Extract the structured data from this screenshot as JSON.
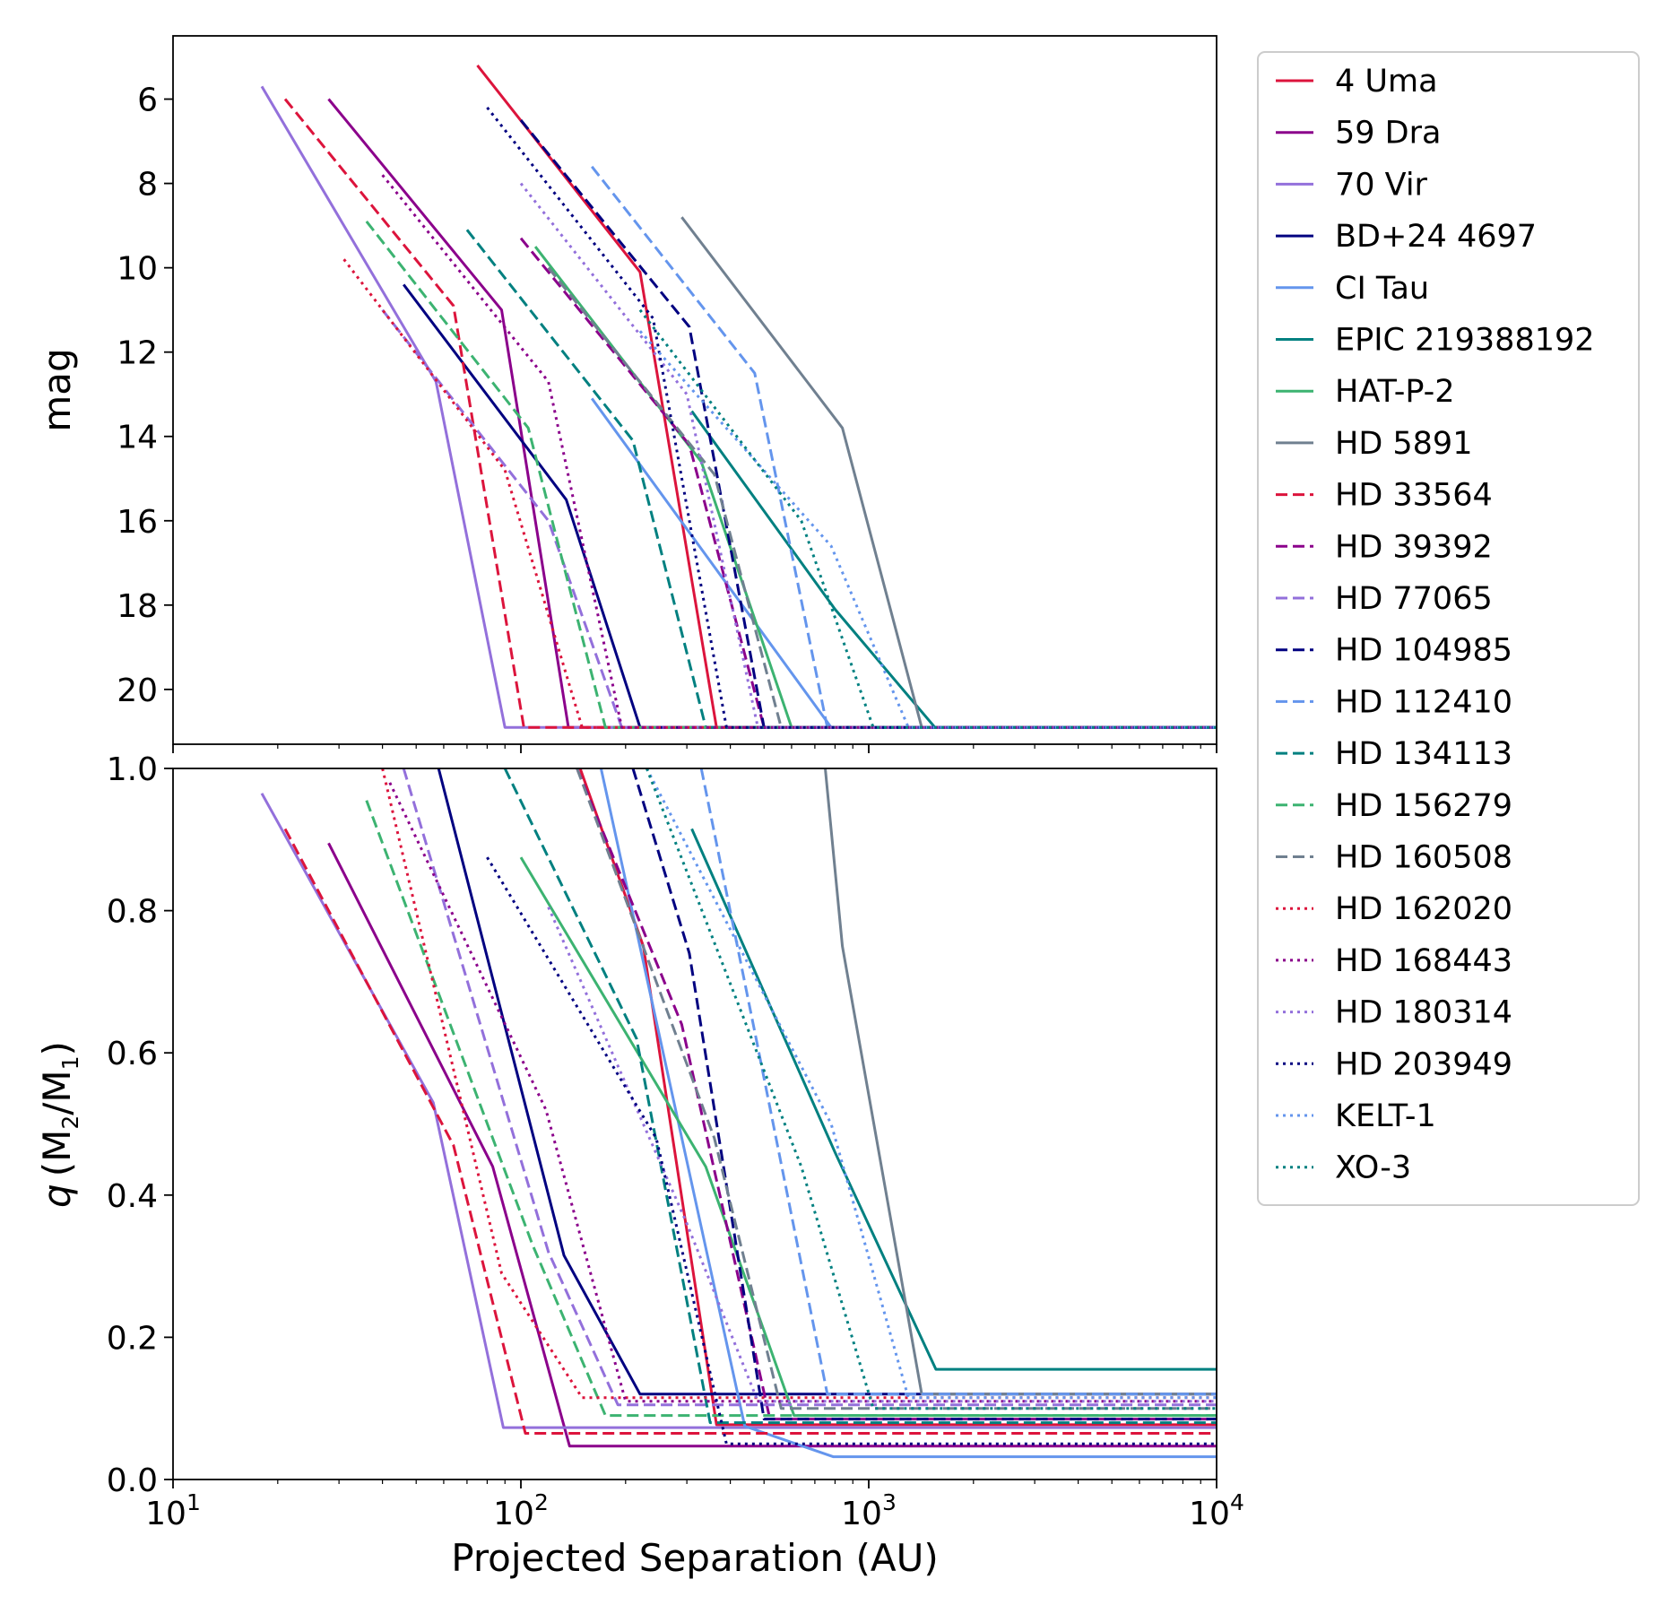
{
  "chart_data": [
    {
      "type": "line",
      "panel": "top",
      "ylabel": "mag",
      "xlabel": "",
      "xscale": "log",
      "xlim": [
        10,
        10000
      ],
      "ylim": [
        4.5,
        21.3
      ],
      "yinverted": true,
      "yticks": [
        "6",
        "8",
        "10",
        "12",
        "14",
        "16",
        "18",
        "20"
      ],
      "series": [
        {
          "name": "4 Uma",
          "color": "#dc143c",
          "style": "solid",
          "x": [
            75,
            220,
            365,
            10000
          ],
          "y": [
            5.2,
            10.1,
            20.9,
            20.9
          ]
        },
        {
          "name": "59 Dra",
          "color": "#8b008b",
          "style": "solid",
          "x": [
            28,
            88,
            137,
            10000
          ],
          "y": [
            6.0,
            11.0,
            20.9,
            20.9
          ]
        },
        {
          "name": "70 Vir",
          "color": "#9370db",
          "style": "solid",
          "x": [
            18,
            57,
            90,
            10000
          ],
          "y": [
            5.7,
            12.7,
            20.9,
            20.9
          ]
        },
        {
          "name": "BD+24 4697",
          "color": "#000080",
          "style": "solid",
          "x": [
            46,
            135,
            220,
            10000
          ],
          "y": [
            10.4,
            15.5,
            20.9,
            20.9
          ]
        },
        {
          "name": "CI Tau",
          "color": "#6495ed",
          "style": "solid",
          "x": [
            160,
            780,
            10000
          ],
          "y": [
            13.1,
            20.9,
            20.9
          ]
        },
        {
          "name": "EPIC 219388192",
          "color": "#008080",
          "style": "solid",
          "x": [
            310,
            800,
            1550,
            10000
          ],
          "y": [
            13.4,
            18.1,
            20.9,
            20.9
          ]
        },
        {
          "name": "HAT-P-2",
          "color": "#3cb371",
          "style": "solid",
          "x": [
            110,
            330,
            600,
            10000
          ],
          "y": [
            9.5,
            14.6,
            20.9,
            20.9
          ]
        },
        {
          "name": "HD 5891",
          "color": "#708090",
          "style": "solid",
          "x": [
            290,
            840,
            1420,
            10000
          ],
          "y": [
            8.8,
            13.8,
            20.9,
            20.9
          ]
        },
        {
          "name": "HD 33564",
          "color": "#dc143c",
          "style": "dashed",
          "x": [
            21,
            64,
            102,
            10000
          ],
          "y": [
            6.0,
            10.9,
            20.9,
            20.9
          ]
        },
        {
          "name": "HD 39392",
          "color": "#8b008b",
          "style": "dashed",
          "x": [
            100,
            305,
            500,
            10000
          ],
          "y": [
            9.3,
            14.2,
            20.9,
            20.9
          ]
        },
        {
          "name": "HD 77065",
          "color": "#9370db",
          "style": "dashed",
          "x": [
            40,
            120,
            195,
            10000
          ],
          "y": [
            11.0,
            16.0,
            20.9,
            20.9
          ]
        },
        {
          "name": "HD 104985",
          "color": "#000080",
          "style": "dashed",
          "x": [
            100,
            305,
            500,
            10000
          ],
          "y": [
            6.5,
            11.4,
            20.9,
            20.9
          ]
        },
        {
          "name": "HD 112410",
          "color": "#6495ed",
          "style": "dashed",
          "x": [
            160,
            470,
            760,
            10000
          ],
          "y": [
            7.6,
            12.5,
            20.9,
            20.9
          ]
        },
        {
          "name": "HD 134113",
          "color": "#008080",
          "style": "dashed",
          "x": [
            70,
            210,
            340,
            10000
          ],
          "y": [
            9.1,
            14.1,
            20.9,
            20.9
          ]
        },
        {
          "name": "HD 156279",
          "color": "#3cb371",
          "style": "dashed",
          "x": [
            36,
            105,
            175,
            10000
          ],
          "y": [
            8.9,
            13.8,
            20.9,
            20.9
          ]
        },
        {
          "name": "HD 160508",
          "color": "#708090",
          "style": "dashed",
          "x": [
            120,
            360,
            560,
            10000
          ],
          "y": [
            10.0,
            14.9,
            20.9,
            20.9
          ]
        },
        {
          "name": "HD 162020",
          "color": "#dc143c",
          "style": "dotted",
          "x": [
            31,
            90,
            150,
            10000
          ],
          "y": [
            9.8,
            14.8,
            20.9,
            20.9
          ]
        },
        {
          "name": "HD 168443",
          "color": "#8b008b",
          "style": "dotted",
          "x": [
            40,
            120,
            195,
            10000
          ],
          "y": [
            7.8,
            12.7,
            20.9,
            20.9
          ]
        },
        {
          "name": "HD 180314",
          "color": "#9370db",
          "style": "dotted",
          "x": [
            100,
            300,
            480,
            10000
          ],
          "y": [
            8.0,
            13.0,
            20.9,
            20.9
          ]
        },
        {
          "name": "HD 203949",
          "color": "#000080",
          "style": "dotted",
          "x": [
            80,
            240,
            390,
            10000
          ],
          "y": [
            6.2,
            11.2,
            20.9,
            20.9
          ]
        },
        {
          "name": "KELT-1",
          "color": "#6495ed",
          "style": "dotted",
          "x": [
            220,
            780,
            1300,
            10000
          ],
          "y": [
            11.5,
            16.6,
            20.9,
            20.9
          ]
        },
        {
          "name": "XO-3",
          "color": "#008080",
          "style": "dotted",
          "x": [
            220,
            640,
            1030,
            10000
          ],
          "y": [
            11.0,
            16.0,
            20.9,
            20.9
          ]
        }
      ]
    },
    {
      "type": "line",
      "panel": "bottom",
      "ylabel_main": "q",
      "ylabel_paren_open": "(M",
      "ylabel_sub1": "2",
      "ylabel_slash": "/M",
      "ylabel_sub2": "1",
      "ylabel_paren_close": ")",
      "xlabel": "Projected Separation (AU)",
      "xscale": "log",
      "xlim": [
        10,
        10000
      ],
      "ylim": [
        0.0,
        1.0
      ],
      "yticks": [
        "0.0",
        "0.2",
        "0.4",
        "0.6",
        "0.8",
        "1.0"
      ],
      "xticks": [
        {
          "base": "10",
          "exp": "1"
        },
        {
          "base": "10",
          "exp": "2"
        },
        {
          "base": "10",
          "exp": "3"
        },
        {
          "base": "10",
          "exp": "4"
        }
      ],
      "series": [
        {
          "name": "4 Uma",
          "color": "#dc143c",
          "style": "solid",
          "x": [
            148,
            225,
            365,
            10000
          ],
          "y": [
            1.0,
            0.75,
            0.077,
            0.077
          ]
        },
        {
          "name": "59 Dra",
          "color": "#8b008b",
          "style": "solid",
          "x": [
            28,
            83,
            138,
            10000
          ],
          "y": [
            0.895,
            0.44,
            0.047,
            0.047
          ]
        },
        {
          "name": "70 Vir",
          "color": "#9370db",
          "style": "solid",
          "x": [
            18,
            56,
            89,
            10000
          ],
          "y": [
            0.965,
            0.53,
            0.073,
            0.073
          ]
        },
        {
          "name": "BD+24 4697",
          "color": "#000080",
          "style": "solid",
          "x": [
            58,
            133,
            220,
            10000
          ],
          "y": [
            1.0,
            0.315,
            0.12,
            0.12
          ]
        },
        {
          "name": "CI Tau",
          "color": "#6495ed",
          "style": "solid",
          "x": [
            170,
            440,
            790,
            10000
          ],
          "y": [
            1.0,
            0.075,
            0.032,
            0.032
          ]
        },
        {
          "name": "EPIC 219388192",
          "color": "#008080",
          "style": "solid",
          "x": [
            310,
            800,
            1560,
            10000
          ],
          "y": [
            0.915,
            0.46,
            0.155,
            0.155
          ]
        },
        {
          "name": "HAT-P-2",
          "color": "#3cb371",
          "style": "solid",
          "x": [
            100,
            340,
            610,
            10000
          ],
          "y": [
            0.875,
            0.44,
            0.09,
            0.09
          ]
        },
        {
          "name": "HD 5891",
          "color": "#708090",
          "style": "solid",
          "x": [
            750,
            840,
            1420,
            10000
          ],
          "y": [
            1.0,
            0.75,
            0.12,
            0.12
          ]
        },
        {
          "name": "HD 33564",
          "color": "#dc143c",
          "style": "dashed",
          "x": [
            21,
            64,
            103,
            10000
          ],
          "y": [
            0.915,
            0.47,
            0.065,
            0.065
          ]
        },
        {
          "name": "HD 39392",
          "color": "#8b008b",
          "style": "dashed",
          "x": [
            145,
            290,
            520,
            10000
          ],
          "y": [
            1.0,
            0.64,
            0.085,
            0.085
          ]
        },
        {
          "name": "HD 77065",
          "color": "#9370db",
          "style": "dashed",
          "x": [
            46,
            120,
            190,
            10000
          ],
          "y": [
            1.0,
            0.32,
            0.105,
            0.105
          ]
        },
        {
          "name": "HD 104985",
          "color": "#000080",
          "style": "dashed",
          "x": [
            210,
            305,
            500,
            10000
          ],
          "y": [
            1.0,
            0.74,
            0.085,
            0.085
          ]
        },
        {
          "name": "HD 112410",
          "color": "#6495ed",
          "style": "dashed",
          "x": [
            330,
            470,
            760,
            10000
          ],
          "y": [
            1.0,
            0.63,
            0.12,
            0.12
          ]
        },
        {
          "name": "HD 134113",
          "color": "#008080",
          "style": "dashed",
          "x": [
            90,
            215,
            350,
            10000
          ],
          "y": [
            1.0,
            0.62,
            0.08,
            0.08
          ]
        },
        {
          "name": "HD 156279",
          "color": "#3cb371",
          "style": "dashed",
          "x": [
            36,
            108,
            175,
            10000
          ],
          "y": [
            0.955,
            0.33,
            0.09,
            0.09
          ]
        },
        {
          "name": "HD 160508",
          "color": "#708090",
          "style": "dashed",
          "x": [
            145,
            360,
            560,
            10000
          ],
          "y": [
            1.0,
            0.48,
            0.1,
            0.1
          ]
        },
        {
          "name": "HD 162020",
          "color": "#dc143c",
          "style": "dotted",
          "x": [
            40,
            88,
            150,
            10000
          ],
          "y": [
            1.0,
            0.29,
            0.115,
            0.115
          ]
        },
        {
          "name": "HD 168443",
          "color": "#8b008b",
          "style": "dotted",
          "x": [
            42,
            118,
            200,
            10000
          ],
          "y": [
            0.98,
            0.52,
            0.11,
            0.11
          ]
        },
        {
          "name": "HD 180314",
          "color": "#9370db",
          "style": "dotted",
          "x": [
            120,
            300,
            480,
            10000
          ],
          "y": [
            0.805,
            0.36,
            0.11,
            0.11
          ]
        },
        {
          "name": "HD 203949",
          "color": "#000080",
          "style": "dotted",
          "x": [
            80,
            245,
            390,
            10000
          ],
          "y": [
            0.875,
            0.48,
            0.05,
            0.05
          ]
        },
        {
          "name": "KELT-1",
          "color": "#6495ed",
          "style": "dotted",
          "x": [
            230,
            780,
            1300,
            10000
          ],
          "y": [
            1.0,
            0.5,
            0.115,
            0.115
          ]
        },
        {
          "name": "XO-3",
          "color": "#008080",
          "style": "dotted",
          "x": [
            230,
            640,
            1030,
            10000
          ],
          "y": [
            1.0,
            0.44,
            0.1,
            0.1
          ]
        }
      ]
    }
  ],
  "legend": {
    "location": "upper right, outside axes",
    "entries": [
      {
        "label": "4 Uma",
        "color": "#dc143c",
        "style": "solid"
      },
      {
        "label": "59 Dra",
        "color": "#8b008b",
        "style": "solid"
      },
      {
        "label": "70 Vir",
        "color": "#9370db",
        "style": "solid"
      },
      {
        "label": "BD+24 4697",
        "color": "#000080",
        "style": "solid"
      },
      {
        "label": "CI Tau",
        "color": "#6495ed",
        "style": "solid"
      },
      {
        "label": "EPIC 219388192",
        "color": "#008080",
        "style": "solid"
      },
      {
        "label": "HAT-P-2",
        "color": "#3cb371",
        "style": "solid"
      },
      {
        "label": "HD 5891",
        "color": "#708090",
        "style": "solid"
      },
      {
        "label": "HD 33564",
        "color": "#dc143c",
        "style": "dashed"
      },
      {
        "label": "HD 39392",
        "color": "#8b008b",
        "style": "dashed"
      },
      {
        "label": "HD 77065",
        "color": "#9370db",
        "style": "dashed"
      },
      {
        "label": "HD 104985",
        "color": "#000080",
        "style": "dashed"
      },
      {
        "label": "HD 112410",
        "color": "#6495ed",
        "style": "dashed"
      },
      {
        "label": "HD 134113",
        "color": "#008080",
        "style": "dashed"
      },
      {
        "label": "HD 156279",
        "color": "#3cb371",
        "style": "dashed"
      },
      {
        "label": "HD 160508",
        "color": "#708090",
        "style": "dashed"
      },
      {
        "label": "HD 162020",
        "color": "#dc143c",
        "style": "dotted"
      },
      {
        "label": "HD 168443",
        "color": "#8b008b",
        "style": "dotted"
      },
      {
        "label": "HD 180314",
        "color": "#9370db",
        "style": "dotted"
      },
      {
        "label": "HD 203949",
        "color": "#000080",
        "style": "dotted"
      },
      {
        "label": "KELT-1",
        "color": "#6495ed",
        "style": "dotted"
      },
      {
        "label": "XO-3",
        "color": "#008080",
        "style": "dotted"
      }
    ]
  }
}
